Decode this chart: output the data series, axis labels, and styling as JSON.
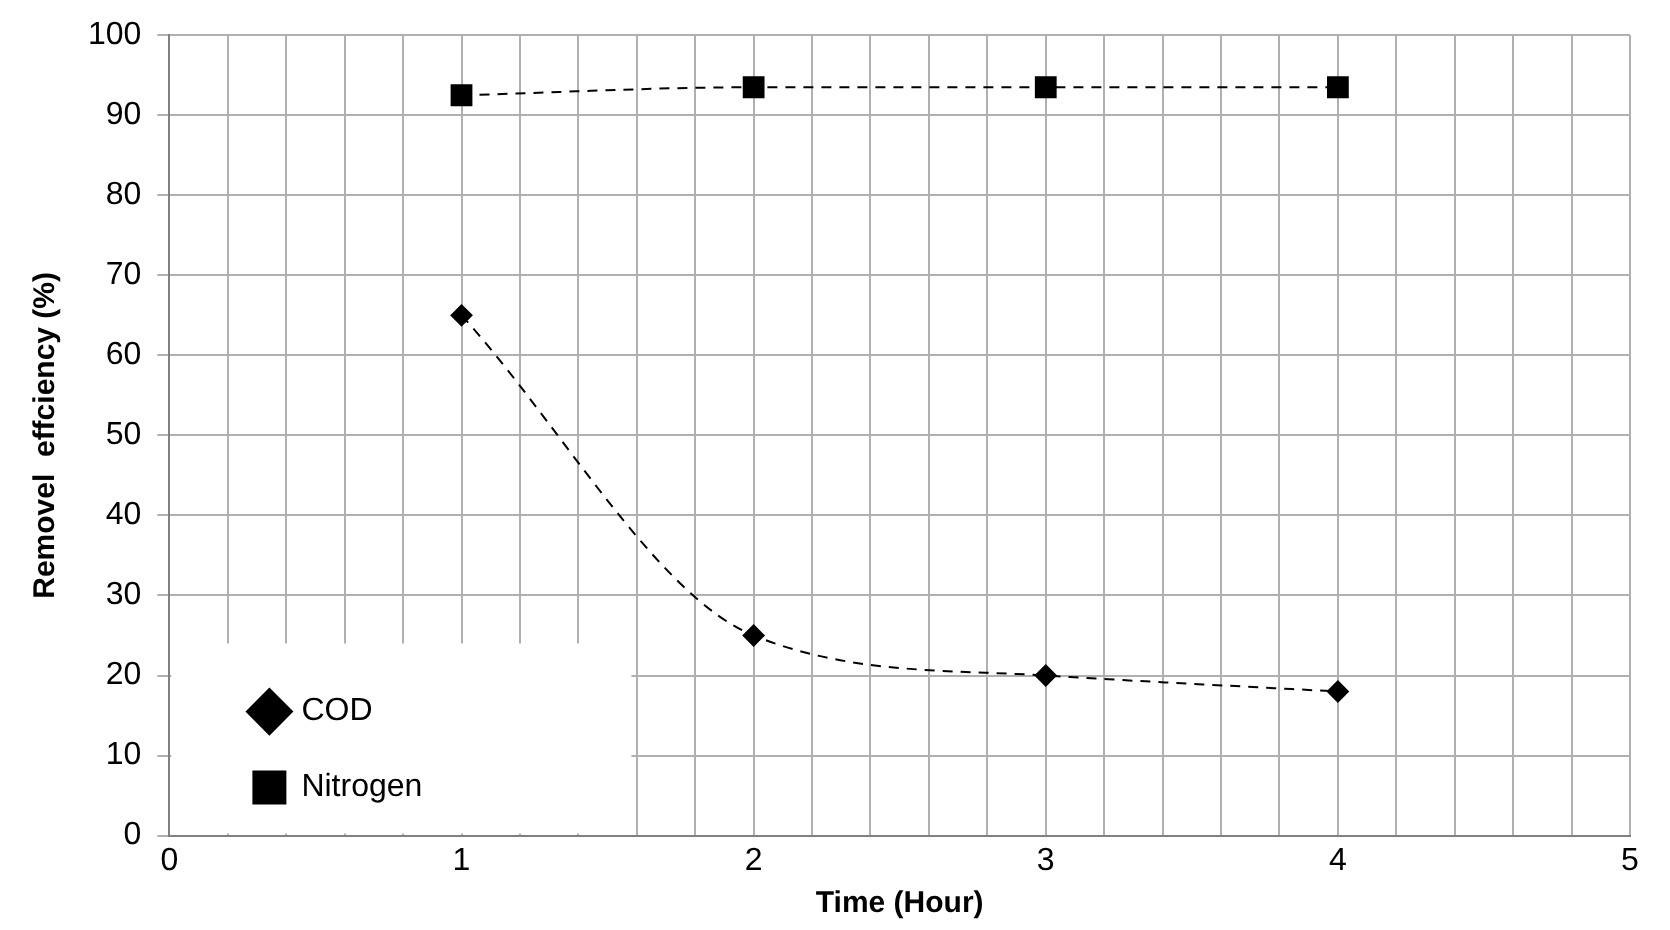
{
  "chart_data": {
    "type": "line",
    "xlabel": "Time (Hour)",
    "ylabel": "Removel  effciency (%)",
    "x": [
      1,
      2,
      3,
      4
    ],
    "series": [
      {
        "name": "COD",
        "color": "#000000",
        "marker": "diamond",
        "values": [
          65,
          25,
          20,
          18
        ]
      },
      {
        "name": "Nitrogen",
        "color": "#000000",
        "marker": "square",
        "values": [
          92.5,
          93.5,
          93.5,
          93.5
        ]
      }
    ],
    "xlim": [
      0,
      5
    ],
    "xticks": [
      0,
      {
        "value": 0.2,
        "label": null
      },
      {
        "value": 0.4,
        "label": null
      },
      {
        "value": 0.6,
        "label": null
      },
      {
        "value": 0.8,
        "label": null
      },
      1,
      {
        "value": 1.2,
        "label": null
      },
      {
        "value": 1.4,
        "label": null
      },
      {
        "value": 1.6,
        "label": null
      },
      {
        "value": 1.8,
        "label": null
      },
      2,
      {
        "value": 2.2,
        "label": null
      },
      {
        "value": 2.4,
        "label": null
      },
      {
        "value": 2.6,
        "label": null
      },
      {
        "value": 2.8,
        "label": null
      },
      3,
      {
        "value": 3.2,
        "label": null
      },
      {
        "value": 3.4,
        "label": null
      },
      {
        "value": 3.6,
        "label": null
      },
      {
        "value": 3.8,
        "label": null
      },
      4,
      {
        "value": 4.2,
        "label": null
      },
      {
        "value": 4.4,
        "label": null
      },
      {
        "value": 4.6,
        "label": null
      },
      {
        "value": 4.8,
        "label": null
      },
      5
    ],
    "ylim": [
      0,
      100
    ],
    "yticks": [
      0,
      10,
      20,
      30,
      40,
      50,
      60,
      70,
      80,
      90,
      100
    ],
    "grid": true,
    "legend": "bottom left",
    "line_style": "dashed"
  }
}
